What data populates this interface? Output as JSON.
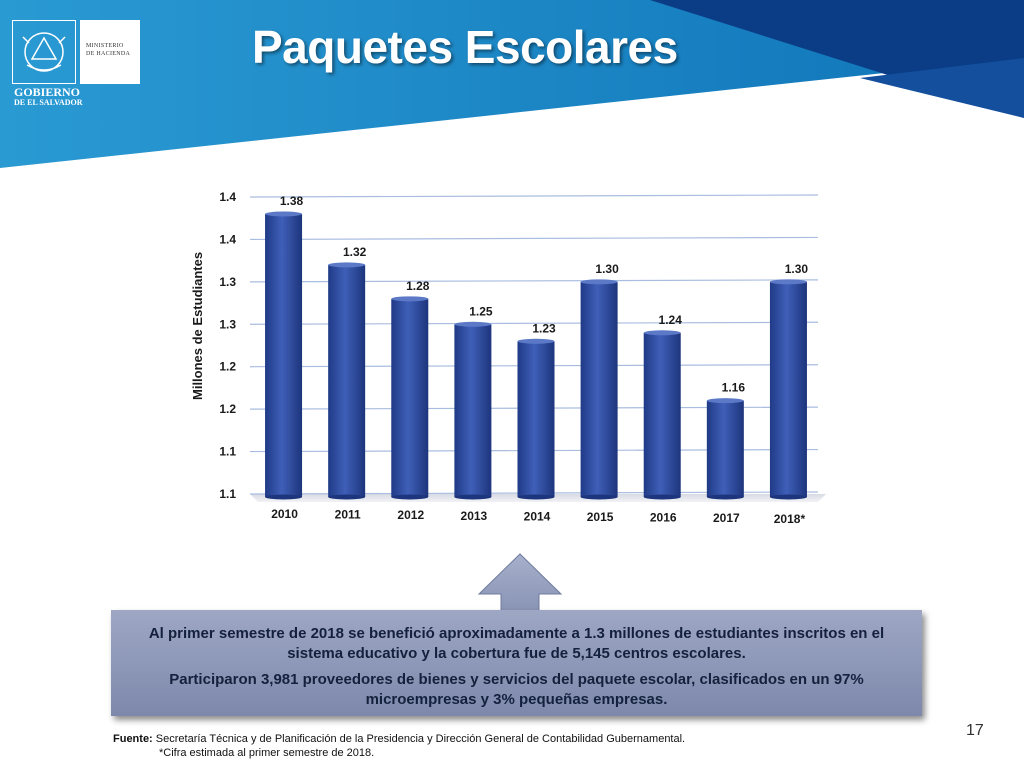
{
  "slide": {
    "title": "Paquetes Escolares",
    "page_number": "17"
  },
  "logo": {
    "ministry_line1": "MINISTERIO",
    "ministry_line2": "DE HACIENDA",
    "gov_line1": "GOBIERNO",
    "gov_line2": "DE EL SALVADOR"
  },
  "chart_data": {
    "type": "bar",
    "categories": [
      "2010",
      "2011",
      "2012",
      "2013",
      "2014",
      "2015",
      "2016",
      "2017",
      "2018*"
    ],
    "values": [
      1.38,
      1.32,
      1.28,
      1.25,
      1.23,
      1.3,
      1.24,
      1.16,
      1.3
    ],
    "value_labels": [
      "1.38",
      "1.32",
      "1.28",
      "1.25",
      "1.23",
      "1.30",
      "1.24",
      "1.16",
      "1.30"
    ],
    "y_ticks": [
      1.05,
      1.1,
      1.15,
      1.2,
      1.25,
      1.3,
      1.35,
      1.4
    ],
    "y_tick_labels": [
      "1.1",
      "1.1",
      "1.2",
      "1.2",
      "1.3",
      "1.3",
      "1.4",
      "1.4"
    ],
    "ylim": [
      1.05,
      1.4
    ],
    "xlabel": "",
    "ylabel": "Millones de Estudiantes",
    "grid": true,
    "bar_color": "#2e4a9a"
  },
  "summary": {
    "paragraph1": "Al primer semestre de 2018 se benefició aproximadamente a 1.3 millones de estudiantes inscritos en el sistema educativo y la cobertura fue de 5,145 centros escolares.",
    "paragraph2": "Participaron 3,981 proveedores de bienes y servicios del paquete escolar, clasificados en un 97% microempresas y 3% pequeñas empresas."
  },
  "footer": {
    "source_label": "Fuente:",
    "source_text": "Secretaría Técnica y de Planificación de la Presidencia y Dirección General de Contabilidad Gubernamental.",
    "note": "*Cifra estimada al primer semestre de 2018."
  },
  "colors": {
    "header_blue": "#1e8fc8",
    "header_navy": "#0a3f8a",
    "bar": "#2e4a9a",
    "arrow": "#8b96b8"
  }
}
